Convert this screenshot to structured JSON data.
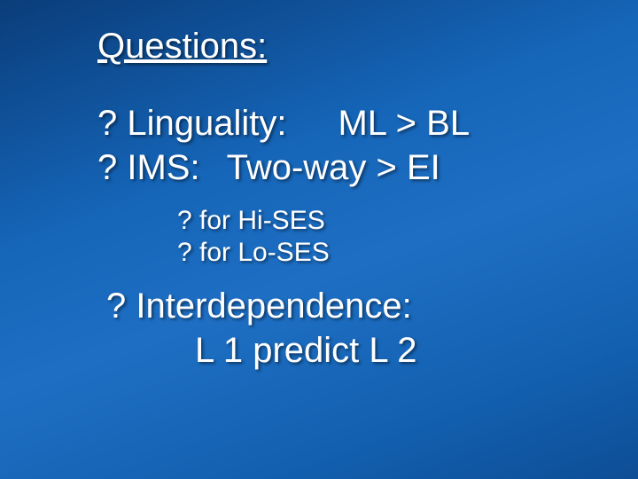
{
  "slide": {
    "title": "Questions:",
    "line1_left": "? Linguality:",
    "line1_right": "ML > BL",
    "line2_left": "? IMS:",
    "line2_right": "Two-way > EI",
    "sub1": "? for Hi-SES",
    "sub2": "? for Lo-SES",
    "line3": "? Interdependence:",
    "line4": "L 1 predict L 2",
    "title_fontsize": 40,
    "body_fontsize": 40,
    "sub_fontsize": 30,
    "text_color": "#ffffff",
    "bg_gradient_start": "#0a3d7a",
    "bg_gradient_end": "#0d4e96"
  }
}
